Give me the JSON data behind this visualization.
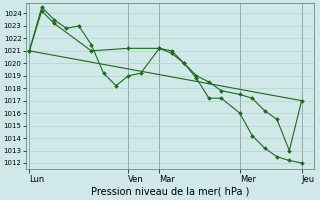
{
  "xlabel": "Pression niveau de la mer( hPa )",
  "background_color": "#d0e8e8",
  "grid_color": "#b0cccc",
  "line_color": "#1a6b1a",
  "ylim": [
    1011.5,
    1024.8
  ],
  "yticks": [
    1012,
    1013,
    1014,
    1015,
    1016,
    1017,
    1018,
    1019,
    1020,
    1021,
    1022,
    1023,
    1024
  ],
  "x_day_labels": [
    "Lun",
    "Ven",
    "Mar",
    "Mer",
    "Jeu"
  ],
  "x_day_positions": [
    0.0,
    8.0,
    10.5,
    17.0,
    22.0
  ],
  "xlim": [
    -0.3,
    23.0
  ],
  "line1_x": [
    0,
    1,
    2,
    5,
    8,
    10.5,
    11.5,
    12.5,
    13.5,
    14.5,
    15.5,
    17,
    18,
    19,
    20,
    21,
    22
  ],
  "line1_y": [
    1021.0,
    1024.2,
    1023.2,
    1021.0,
    1021.2,
    1021.2,
    1020.8,
    1020.0,
    1018.8,
    1017.2,
    1017.2,
    1016.0,
    1014.2,
    1013.2,
    1012.5,
    1012.2,
    1012.0
  ],
  "line2_x": [
    0,
    1,
    2,
    3,
    4,
    5,
    6,
    7,
    8,
    9,
    10.5,
    11.5,
    12.5,
    13.5,
    14.5,
    15.5,
    17,
    18,
    19,
    20,
    21,
    22
  ],
  "line2_y": [
    1021.0,
    1024.5,
    1023.5,
    1022.8,
    1023.0,
    1021.5,
    1019.2,
    1018.2,
    1019.0,
    1019.2,
    1021.2,
    1021.0,
    1020.0,
    1019.0,
    1018.5,
    1017.8,
    1017.5,
    1017.2,
    1016.2,
    1015.5,
    1013.0,
    1017.0
  ],
  "line3_x": [
    0,
    22
  ],
  "line3_y": [
    1021.0,
    1017.0
  ],
  "figsize": [
    3.2,
    2.0
  ],
  "dpi": 100,
  "ytick_fontsize": 5.0,
  "xtick_fontsize": 6.0,
  "xlabel_fontsize": 7.0,
  "marker_size": 2.0,
  "line_width": 0.8
}
